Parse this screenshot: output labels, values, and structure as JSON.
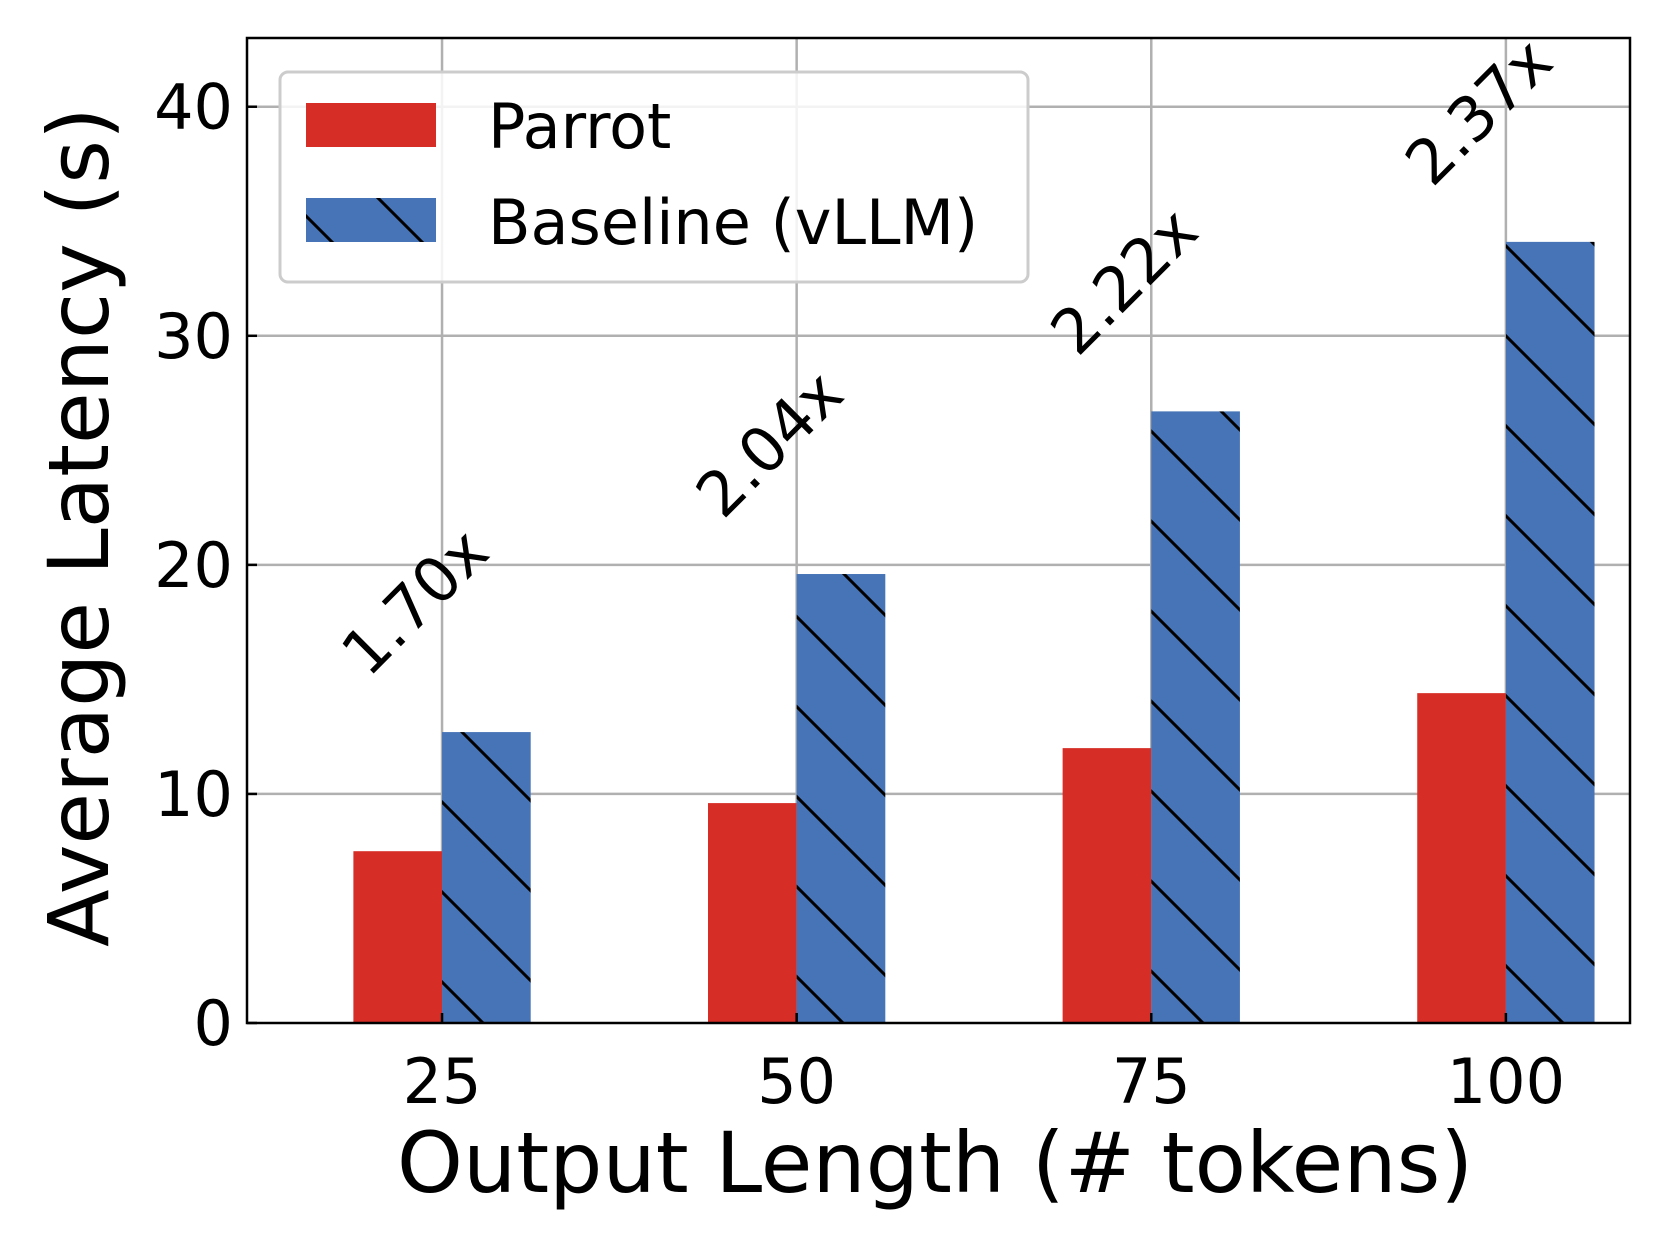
{
  "chart_data": {
    "type": "bar",
    "title": "",
    "xlabel": "Output Length (# tokens)",
    "ylabel": "Average Latency (s)",
    "categories": [
      "25",
      "50",
      "75",
      "100"
    ],
    "ylim": [
      0,
      43
    ],
    "yticks": [
      0,
      10,
      20,
      30,
      40
    ],
    "grid": true,
    "legend_position": "top-left",
    "series": [
      {
        "name": "Parrot",
        "color": "#d62e27",
        "hatch": "none",
        "values": [
          7.5,
          9.6,
          12.0,
          14.4
        ]
      },
      {
        "name": "Baseline (vLLM)",
        "color": "#4674b6",
        "hatch": "diagonal-backslash",
        "values": [
          12.7,
          19.6,
          26.7,
          34.1
        ]
      }
    ],
    "annotations": [
      "1.70x",
      "2.04x",
      "2.22x",
      "2.37x"
    ]
  }
}
